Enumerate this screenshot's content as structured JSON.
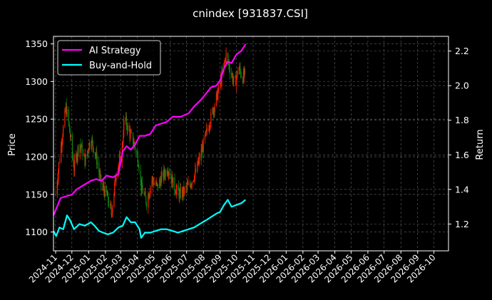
{
  "chart_data": {
    "type": "line",
    "title": "cnindex [931837.CSI]",
    "ylabel_left": "Price",
    "ylabel_right": "Return",
    "xlabel": "",
    "ylim_left": [
      1075,
      1360
    ],
    "ylim_right": [
      1.045,
      2.285
    ],
    "xlim": [
      "2024-10-28",
      "2026-10-28"
    ],
    "y_ticks_left": [
      "1100",
      "1150",
      "1200",
      "1250",
      "1300",
      "1350"
    ],
    "y_ticks_right": [
      "1.2",
      "1.4",
      "1.6",
      "1.8",
      "2.0",
      "2.2"
    ],
    "x_ticks": [
      "2024-11",
      "2024-12",
      "2025-01",
      "2025-02",
      "2025-03",
      "2025-04",
      "2025-05",
      "2025-06",
      "2025-07",
      "2025-08",
      "2025-09",
      "2025-10",
      "2025-11",
      "2025-12",
      "2026-01",
      "2026-02",
      "2026-03",
      "2026-04",
      "2026-05",
      "2026-06",
      "2026-07",
      "2026-08",
      "2026-09",
      "2026-10"
    ],
    "grid": true,
    "legend": "top-left",
    "colors": {
      "ai": "#ff00ff",
      "bh": "#00ffff",
      "up": "#ff2000",
      "down": "#108010",
      "grid": "#666666",
      "axis": "#ffffff"
    },
    "candles": {
      "name": "Price",
      "points": [
        [
          "2024-11-01",
          1150
        ],
        [
          "2024-11-10",
          1210
        ],
        [
          "2024-11-20",
          1265
        ],
        [
          "2024-11-25",
          1245
        ],
        [
          "2024-12-05",
          1185
        ],
        [
          "2024-12-15",
          1220
        ],
        [
          "2024-12-25",
          1195
        ],
        [
          "2025-01-05",
          1225
        ],
        [
          "2025-01-15",
          1200
        ],
        [
          "2025-01-25",
          1160
        ],
        [
          "2025-02-03",
          1150
        ],
        [
          "2025-02-12",
          1125
        ],
        [
          "2025-02-22",
          1185
        ],
        [
          "2025-03-03",
          1200
        ],
        [
          "2025-03-08",
          1255
        ],
        [
          "2025-03-15",
          1235
        ],
        [
          "2025-03-25",
          1220
        ],
        [
          "2025-04-03",
          1195
        ],
        [
          "2025-04-08",
          1160
        ],
        [
          "2025-04-18",
          1140
        ],
        [
          "2025-04-28",
          1170
        ],
        [
          "2025-05-08",
          1160
        ],
        [
          "2025-05-18",
          1175
        ],
        [
          "2025-05-28",
          1185
        ],
        [
          "2025-06-08",
          1160
        ],
        [
          "2025-06-18",
          1150
        ],
        [
          "2025-06-28",
          1155
        ],
        [
          "2025-07-08",
          1165
        ],
        [
          "2025-07-18",
          1180
        ],
        [
          "2025-07-28",
          1205
        ],
        [
          "2025-08-08",
          1235
        ],
        [
          "2025-08-18",
          1260
        ],
        [
          "2025-08-28",
          1285
        ],
        [
          "2025-09-05",
          1310
        ],
        [
          "2025-09-12",
          1335
        ],
        [
          "2025-09-20",
          1315
        ],
        [
          "2025-09-28",
          1295
        ],
        [
          "2025-10-05",
          1320
        ],
        [
          "2025-10-12",
          1305
        ],
        [
          "2025-10-18",
          1310
        ]
      ]
    },
    "series": [
      {
        "name": "AI Strategy",
        "axis": "right",
        "points": [
          [
            "2024-10-28",
            1.25
          ],
          [
            "2024-11-05",
            1.31
          ],
          [
            "2024-11-10",
            1.35
          ],
          [
            "2024-11-20",
            1.36
          ],
          [
            "2024-12-01",
            1.37
          ],
          [
            "2024-12-10",
            1.4
          ],
          [
            "2024-12-20",
            1.42
          ],
          [
            "2025-01-05",
            1.45
          ],
          [
            "2025-01-15",
            1.46
          ],
          [
            "2025-01-25",
            1.45
          ],
          [
            "2025-02-03",
            1.48
          ],
          [
            "2025-02-15",
            1.47
          ],
          [
            "2025-02-25",
            1.49
          ],
          [
            "2025-03-05",
            1.62
          ],
          [
            "2025-03-12",
            1.65
          ],
          [
            "2025-03-20",
            1.63
          ],
          [
            "2025-03-28",
            1.66
          ],
          [
            "2025-04-05",
            1.71
          ],
          [
            "2025-04-15",
            1.71
          ],
          [
            "2025-04-25",
            1.72
          ],
          [
            "2025-05-05",
            1.77
          ],
          [
            "2025-05-15",
            1.78
          ],
          [
            "2025-05-25",
            1.79
          ],
          [
            "2025-06-05",
            1.82
          ],
          [
            "2025-06-20",
            1.82
          ],
          [
            "2025-07-05",
            1.84
          ],
          [
            "2025-07-15",
            1.88
          ],
          [
            "2025-07-28",
            1.92
          ],
          [
            "2025-08-05",
            1.95
          ],
          [
            "2025-08-15",
            1.99
          ],
          [
            "2025-08-25",
            2.0
          ],
          [
            "2025-09-01",
            2.03
          ],
          [
            "2025-09-08",
            2.1
          ],
          [
            "2025-09-15",
            2.14
          ],
          [
            "2025-09-22",
            2.13
          ],
          [
            "2025-10-01",
            2.18
          ],
          [
            "2025-10-10",
            2.2
          ],
          [
            "2025-10-18",
            2.24
          ]
        ]
      },
      {
        "name": "Buy-and-Hold",
        "axis": "right",
        "points": [
          [
            "2024-10-28",
            1.16
          ],
          [
            "2024-11-02",
            1.13
          ],
          [
            "2024-11-08",
            1.18
          ],
          [
            "2024-11-15",
            1.17
          ],
          [
            "2024-11-22",
            1.25
          ],
          [
            "2024-11-28",
            1.22
          ],
          [
            "2024-12-05",
            1.17
          ],
          [
            "2024-12-15",
            1.2
          ],
          [
            "2024-12-25",
            1.19
          ],
          [
            "2025-01-05",
            1.21
          ],
          [
            "2025-01-12",
            1.19
          ],
          [
            "2025-01-20",
            1.16
          ],
          [
            "2025-01-28",
            1.15
          ],
          [
            "2025-02-05",
            1.14
          ],
          [
            "2025-02-15",
            1.15
          ],
          [
            "2025-02-25",
            1.18
          ],
          [
            "2025-03-05",
            1.19
          ],
          [
            "2025-03-12",
            1.24
          ],
          [
            "2025-03-20",
            1.21
          ],
          [
            "2025-03-28",
            1.21
          ],
          [
            "2025-04-05",
            1.17
          ],
          [
            "2025-04-08",
            1.12
          ],
          [
            "2025-04-15",
            1.15
          ],
          [
            "2025-04-25",
            1.15
          ],
          [
            "2025-05-05",
            1.16
          ],
          [
            "2025-05-15",
            1.17
          ],
          [
            "2025-05-25",
            1.17
          ],
          [
            "2025-06-05",
            1.16
          ],
          [
            "2025-06-15",
            1.15
          ],
          [
            "2025-06-25",
            1.16
          ],
          [
            "2025-07-05",
            1.17
          ],
          [
            "2025-07-15",
            1.18
          ],
          [
            "2025-07-25",
            1.2
          ],
          [
            "2025-08-05",
            1.22
          ],
          [
            "2025-08-15",
            1.24
          ],
          [
            "2025-08-25",
            1.26
          ],
          [
            "2025-09-01",
            1.27
          ],
          [
            "2025-09-08",
            1.31
          ],
          [
            "2025-09-15",
            1.34
          ],
          [
            "2025-09-22",
            1.3
          ],
          [
            "2025-10-01",
            1.31
          ],
          [
            "2025-10-10",
            1.32
          ],
          [
            "2025-10-18",
            1.34
          ]
        ]
      }
    ]
  }
}
